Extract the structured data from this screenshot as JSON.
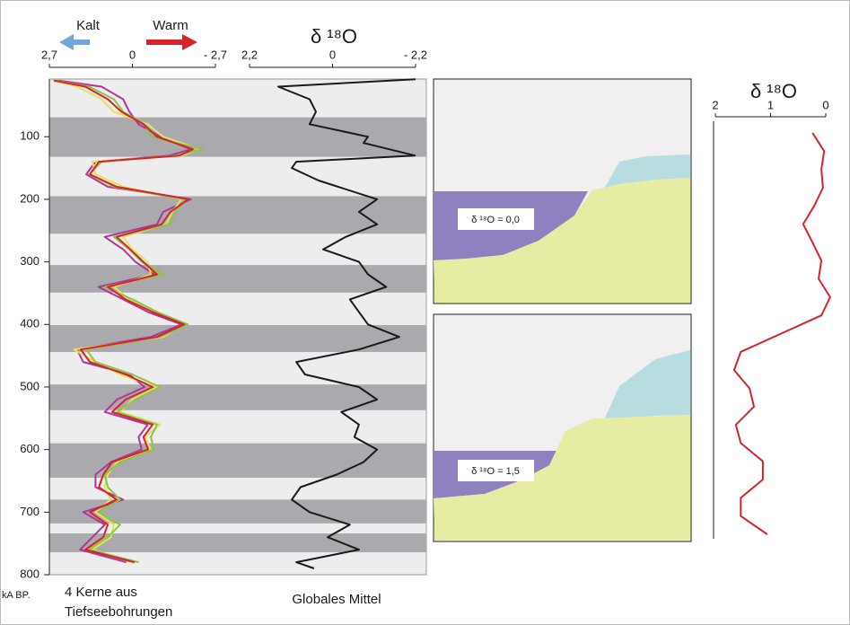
{
  "chart_data": [
    {
      "type": "line",
      "orientation": "vertical",
      "labels": {
        "cold": "Kalt",
        "warm": "Warm"
      },
      "xlabel": "kA BP.",
      "caption": [
        "4 Kerne aus",
        "Tiefseebohrungen"
      ],
      "x": [
        10,
        20,
        40,
        60,
        80,
        100,
        120,
        130,
        140,
        160,
        180,
        200,
        220,
        240,
        260,
        280,
        300,
        320,
        340,
        360,
        380,
        400,
        420,
        440,
        460,
        480,
        500,
        520,
        540,
        560,
        580,
        600,
        620,
        640,
        660,
        680,
        700,
        720,
        740,
        760,
        780
      ],
      "xlim": [
        0,
        800
      ],
      "xticks": [
        100,
        200,
        300,
        400,
        500,
        600,
        700,
        800
      ],
      "ylim": [
        2.7,
        -2.7
      ],
      "yticks": [
        {
          "value": 2.7,
          "label": "2,7"
        },
        0,
        {
          "value": -2.7,
          "label": "- 2,7"
        }
      ],
      "bands": [
        [
          69,
          132
        ],
        [
          195,
          255
        ],
        [
          305,
          349
        ],
        [
          401,
          444
        ],
        [
          496,
          537
        ],
        [
          590,
          645
        ],
        [
          680,
          718
        ],
        [
          734,
          764
        ]
      ],
      "band_color": "#a9a9ae",
      "series": [
        {
          "color": "#b0369a",
          "values": [
            2.4,
            1.0,
            0.3,
            0.1,
            -0.2,
            -0.9,
            -1.9,
            -1.2,
            1.2,
            1.5,
            0.8,
            -1.9,
            -1.0,
            -0.8,
            0.9,
            0.3,
            -0.1,
            -0.7,
            1.1,
            0.3,
            -0.5,
            -1.6,
            -0.6,
            1.8,
            1.6,
            0.1,
            -0.4,
            0.5,
            0.9,
            -0.5,
            -0.2,
            -0.3,
            0.7,
            1.2,
            1.2,
            0.3,
            1.6,
            0.9,
            1.3,
            1.7,
            0.2
          ]
        },
        {
          "color": "#e2e35c",
          "values": [
            2.6,
            1.8,
            1.0,
            0.6,
            -0.5,
            -1.0,
            -2.2,
            -1.6,
            1.3,
            1.2,
            0.3,
            -1.6,
            -1.3,
            -1.1,
            0.3,
            0.0,
            -0.5,
            -0.6,
            0.6,
            0.1,
            -0.8,
            -1.7,
            -1.0,
            1.9,
            1.2,
            0.4,
            -0.8,
            0.0,
            0.4,
            -0.9,
            -0.4,
            -0.6,
            0.5,
            0.8,
            0.9,
            0.7,
            1.2,
            0.6,
            0.7,
            1.3,
            0.0
          ]
        },
        {
          "color": "#8cc63f",
          "values": [
            2.5,
            1.4,
            0.6,
            0.3,
            -0.4,
            -0.6,
            -2.3,
            -1.4,
            1.0,
            1.4,
            0.6,
            -1.7,
            -1.4,
            -1.2,
            0.6,
            0.1,
            -0.3,
            -1.0,
            0.9,
            0.0,
            -0.8,
            -1.8,
            -0.9,
            1.5,
            1.2,
            0.0,
            -0.9,
            -0.1,
            0.5,
            -0.8,
            -0.6,
            -0.7,
            0.4,
            0.9,
            0.8,
            0.4,
            1.1,
            0.4,
            0.8,
            1.4,
            -0.2
          ]
        },
        {
          "color": "#d8232a",
          "values": [
            2.55,
            1.53,
            0.8,
            0.36,
            -0.36,
            -0.8,
            -1.97,
            -1.53,
            1.09,
            1.38,
            0.51,
            -1.82,
            -1.24,
            -0.95,
            0.51,
            0.07,
            -0.36,
            -0.8,
            0.8,
            0.22,
            -0.66,
            -1.68,
            -0.8,
            1.68,
            1.38,
            0.22,
            -0.66,
            0.22,
            0.66,
            -0.66,
            -0.36,
            -0.51,
            0.66,
            0.95,
            1.09,
            0.51,
            1.38,
            0.8,
            0.95,
            1.53,
            -0.07
          ]
        }
      ]
    },
    {
      "type": "line",
      "orientation": "vertical",
      "title": "δ ¹⁸O",
      "caption": [
        "Globales Mittel"
      ],
      "x": [
        8,
        20,
        40,
        60,
        80,
        100,
        110,
        130,
        140,
        150,
        170,
        200,
        220,
        240,
        260,
        280,
        300,
        320,
        340,
        360,
        380,
        400,
        420,
        440,
        460,
        480,
        500,
        520,
        540,
        560,
        580,
        600,
        620,
        640,
        660,
        680,
        700,
        720,
        740,
        760,
        780,
        790
      ],
      "xlim": [
        0,
        800
      ],
      "ylim": [
        2.2,
        -2.2
      ],
      "yticks": [
        {
          "value": 2.2,
          "label": "2,2"
        },
        0,
        {
          "value": -2.2,
          "label": "- 2,2"
        }
      ],
      "series": [
        {
          "color": "#1a1a1a",
          "values": [
            -2.2,
            1.44,
            0.61,
            0.44,
            0.61,
            -0.94,
            -0.82,
            -2.18,
            0.96,
            1.08,
            0.37,
            -1.18,
            -0.7,
            -1.18,
            -0.35,
            0.25,
            -0.7,
            -0.94,
            -1.42,
            -0.46,
            -0.7,
            -0.94,
            -1.77,
            -0.7,
            0.96,
            0.73,
            -0.7,
            -1.18,
            -0.23,
            -0.7,
            -0.58,
            -1.18,
            -0.82,
            -0.11,
            0.85,
            1.08,
            0.61,
            -0.46,
            0.13,
            -0.7,
            0.96,
            0.49
          ]
        }
      ]
    },
    {
      "type": "line",
      "orientation": "vertical",
      "title": "δ ¹⁸O",
      "ylim": [
        2,
        0
      ],
      "yticks": [
        2,
        1,
        0
      ],
      "series": [
        {
          "color": "#d8232a",
          "values": [
            0.24,
            0.03,
            0.08,
            0.05,
            0.21,
            0.41,
            0.24,
            0.08,
            0.13,
            -0.08,
            0.08,
            0.81,
            1.54,
            1.66,
            1.38,
            1.3,
            1.63,
            1.54,
            1.14,
            1.14,
            1.54,
            1.54,
            1.06
          ]
        }
      ]
    }
  ],
  "sea_level_panels": [
    "δ ¹⁸O = 0,0",
    "δ ¹⁸O = 1,5"
  ]
}
